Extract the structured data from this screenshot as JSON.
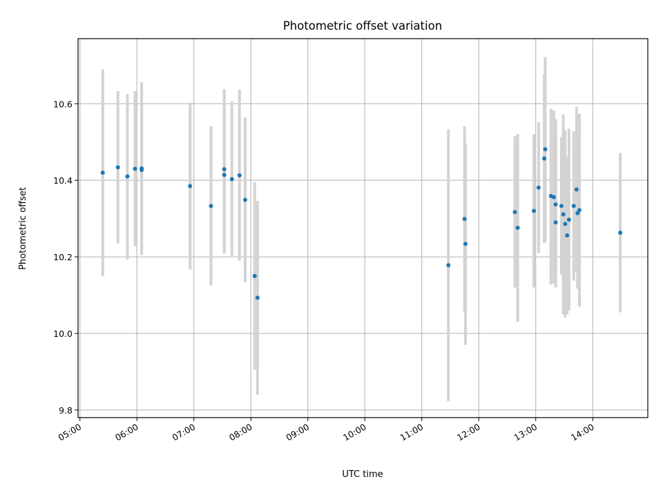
{
  "chart_data": {
    "type": "scatter",
    "title": "Photometric offset variation",
    "xlabel": "UTC time",
    "ylabel": "Photometric offset",
    "x_tick_labels": [
      "05:00",
      "06:00",
      "07:00",
      "08:00",
      "09:00",
      "10:00",
      "11:00",
      "12:00",
      "13:00",
      "14:00"
    ],
    "y_tick_labels": [
      "9.8",
      "10.0",
      "10.2",
      "10.4",
      "10.6"
    ],
    "xlim": [
      "04:58",
      "14:58"
    ],
    "ylim": [
      9.78,
      10.77
    ],
    "grid": true,
    "colors": {
      "points": "#1f77b4",
      "errorbars": "#d3d3d3",
      "grid": "#b0b0b0"
    },
    "points": [
      {
        "t": "05:24",
        "y": 10.42,
        "lo": 10.15,
        "hi": 10.69
      },
      {
        "t": "05:40",
        "y": 10.434,
        "lo": 10.235,
        "hi": 10.633
      },
      {
        "t": "05:50",
        "y": 10.41,
        "lo": 10.193,
        "hi": 10.625
      },
      {
        "t": "05:58",
        "y": 10.43,
        "lo": 10.228,
        "hi": 10.633
      },
      {
        "t": "06:05",
        "y": 10.431,
        "lo": 10.205,
        "hi": 10.656
      },
      {
        "t": "06:05",
        "y": 10.427,
        "lo": 10.205,
        "hi": 10.645
      },
      {
        "t": "06:56",
        "y": 10.385,
        "lo": 10.167,
        "hi": 10.603
      },
      {
        "t": "07:18",
        "y": 10.333,
        "lo": 10.125,
        "hi": 10.541
      },
      {
        "t": "07:32",
        "y": 10.429,
        "lo": 10.22,
        "hi": 10.638
      },
      {
        "t": "07:32",
        "y": 10.414,
        "lo": 10.208,
        "hi": 10.62
      },
      {
        "t": "07:40",
        "y": 10.403,
        "lo": 10.2,
        "hi": 10.606
      },
      {
        "t": "07:48",
        "y": 10.413,
        "lo": 10.19,
        "hi": 10.637
      },
      {
        "t": "07:54",
        "y": 10.349,
        "lo": 10.134,
        "hi": 10.564
      },
      {
        "t": "08:04",
        "y": 10.15,
        "lo": 9.905,
        "hi": 10.395
      },
      {
        "t": "08:07",
        "y": 10.093,
        "lo": 9.84,
        "hi": 10.346
      },
      {
        "t": "11:28",
        "y": 10.178,
        "lo": 9.823,
        "hi": 10.533
      },
      {
        "t": "11:45",
        "y": 10.299,
        "lo": 10.057,
        "hi": 10.541
      },
      {
        "t": "11:46",
        "y": 10.234,
        "lo": 9.97,
        "hi": 10.497
      },
      {
        "t": "12:38",
        "y": 10.317,
        "lo": 10.12,
        "hi": 10.515
      },
      {
        "t": "12:41",
        "y": 10.276,
        "lo": 10.03,
        "hi": 10.521
      },
      {
        "t": "12:58",
        "y": 10.32,
        "lo": 10.12,
        "hi": 10.52
      },
      {
        "t": "13:03",
        "y": 10.381,
        "lo": 10.21,
        "hi": 10.552
      },
      {
        "t": "13:09",
        "y": 10.457,
        "lo": 10.236,
        "hi": 10.678
      },
      {
        "t": "13:10",
        "y": 10.481,
        "lo": 10.24,
        "hi": 10.722
      },
      {
        "t": "13:16",
        "y": 10.359,
        "lo": 10.128,
        "hi": 10.587
      },
      {
        "t": "13:19",
        "y": 10.356,
        "lo": 10.13,
        "hi": 10.582
      },
      {
        "t": "13:21",
        "y": 10.337,
        "lo": 10.12,
        "hi": 10.554
      },
      {
        "t": "13:21",
        "y": 10.29,
        "lo": 10.12,
        "hi": 10.56
      },
      {
        "t": "13:27",
        "y": 10.333,
        "lo": 10.153,
        "hi": 10.513
      },
      {
        "t": "13:29",
        "y": 10.311,
        "lo": 10.05,
        "hi": 10.572
      },
      {
        "t": "13:31",
        "y": 10.286,
        "lo": 10.042,
        "hi": 10.53
      },
      {
        "t": "13:33",
        "y": 10.256,
        "lo": 10.05,
        "hi": 10.462
      },
      {
        "t": "13:35",
        "y": 10.297,
        "lo": 10.06,
        "hi": 10.535
      },
      {
        "t": "13:40",
        "y": 10.333,
        "lo": 10.138,
        "hi": 10.528
      },
      {
        "t": "13:43",
        "y": 10.376,
        "lo": 10.16,
        "hi": 10.592
      },
      {
        "t": "13:44",
        "y": 10.314,
        "lo": 10.117,
        "hi": 10.512
      },
      {
        "t": "13:46",
        "y": 10.322,
        "lo": 10.07,
        "hi": 10.574
      },
      {
        "t": "14:29",
        "y": 10.263,
        "lo": 10.055,
        "hi": 10.471
      }
    ]
  }
}
